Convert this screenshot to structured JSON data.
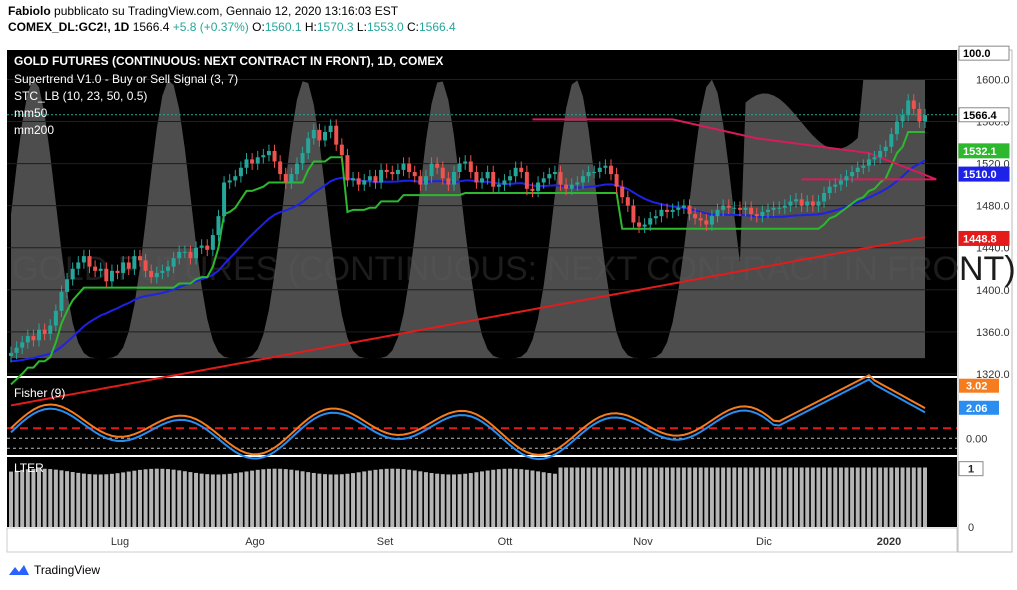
{
  "header": {
    "author": "Fabiolo",
    "published": "pubblicato su TradingView.com, Gennaio 12, 2020 13:16:03 EST",
    "symbol": "COMEX_DL:GC2!, 1D",
    "last": "1566.4",
    "change": "+5.8 (+0.37%)",
    "o_label": "O:",
    "o": "1560.1",
    "h_label": "H:",
    "h": "1570.3",
    "l_label": "L:",
    "l": "1553.0",
    "c_label": "C:",
    "c": "1566.4"
  },
  "footer": {
    "brand": "TradingView"
  },
  "colors": {
    "panel_bg": "#000000",
    "up": "#26a69a",
    "down": "#ef5350",
    "mm50": "#1e22e8",
    "mm200": "#e31b1b",
    "supertrend_up": "#2db82d",
    "supertrend_down": "#d81b5a",
    "stc_fill": "#5a5a5a",
    "fisher_blue": "#2a8ef0",
    "fisher_orange": "#f57c1f"
  },
  "chart_data": [
    {
      "type": "candlestick",
      "title": "GOLD FUTURES (CONTINUOUS: NEXT CONTRACT IN FRONT), 1D, COMEX",
      "indicators": [
        "Supertrend V1.0 - Buy or Sell Signal (3, 7)",
        "STC_LB (10, 23, 50, 0.5)",
        "mm50",
        "mm200"
      ],
      "watermark": "GOLD FUTURES (CONTINUOUS: NEXT CONTRACT IN FRONT)",
      "x_ticks": [
        "Lug",
        "Ago",
        "Set",
        "Ott",
        "Nov",
        "Dic",
        "2020"
      ],
      "y_ticks": [
        1320.0,
        1360.0,
        1400.0,
        1440.0,
        1480.0,
        1520.0,
        1560.0,
        1600.0
      ],
      "ylim": [
        1318,
        1628
      ],
      "price_labels": [
        {
          "text": "100.0",
          "kind": "stc"
        },
        {
          "text": "1566.4",
          "kind": "last"
        },
        {
          "text": "1532.1",
          "kind": "supertrend"
        },
        {
          "text": "1510.0",
          "kind": "mm50"
        },
        {
          "text": "1448.8",
          "kind": "mm200"
        }
      ],
      "close_path": [
        1340,
        1345,
        1350,
        1356,
        1352,
        1362,
        1358,
        1366,
        1380,
        1398,
        1410,
        1420,
        1426,
        1432,
        1422,
        1418,
        1420,
        1408,
        1418,
        1416,
        1426,
        1420,
        1432,
        1428,
        1418,
        1412,
        1416,
        1418,
        1422,
        1430,
        1436,
        1436,
        1430,
        1440,
        1442,
        1438,
        1452,
        1470,
        1502,
        1504,
        1508,
        1516,
        1524,
        1520,
        1526,
        1528,
        1532,
        1522,
        1510,
        1502,
        1510,
        1520,
        1530,
        1544,
        1552,
        1542,
        1550,
        1556,
        1538,
        1528,
        1504,
        1506,
        1500,
        1504,
        1508,
        1502,
        1514,
        1512,
        1510,
        1514,
        1520,
        1512,
        1508,
        1500,
        1508,
        1520,
        1516,
        1506,
        1500,
        1512,
        1520,
        1522,
        1512,
        1502,
        1506,
        1512,
        1498,
        1500,
        1504,
        1508,
        1516,
        1512,
        1496,
        1494,
        1502,
        1506,
        1510,
        1512,
        1500,
        1496,
        1500,
        1502,
        1508,
        1512,
        1512,
        1516,
        1518,
        1510,
        1498,
        1488,
        1480,
        1464,
        1460,
        1462,
        1468,
        1470,
        1476,
        1474,
        1476,
        1478,
        1480,
        1472,
        1468,
        1466,
        1462,
        1470,
        1476,
        1480,
        1478,
        1478,
        1476,
        1478,
        1472,
        1470,
        1474,
        1476,
        1478,
        1478,
        1480,
        1484,
        1486,
        1480,
        1484,
        1480,
        1484,
        1492,
        1498,
        1500,
        1504,
        1508,
        1512,
        1516,
        1518,
        1524,
        1526,
        1532,
        1536,
        1548,
        1560,
        1566,
        1580,
        1572,
        1560,
        1566
      ]
    },
    {
      "type": "line",
      "title": "Fisher (9)",
      "y_ticks": [
        0.0
      ],
      "series": [
        {
          "name": "3.02",
          "color": "#f57c1f"
        },
        {
          "name": "2.06",
          "color": "#2a8ef0"
        }
      ],
      "value_labels": [
        "3.02",
        "2.06",
        "0.00"
      ]
    },
    {
      "type": "bar",
      "title": "LTER",
      "y_ticks": [
        0,
        1
      ],
      "value_label": "1",
      "ylim": [
        0,
        1.2
      ]
    }
  ]
}
